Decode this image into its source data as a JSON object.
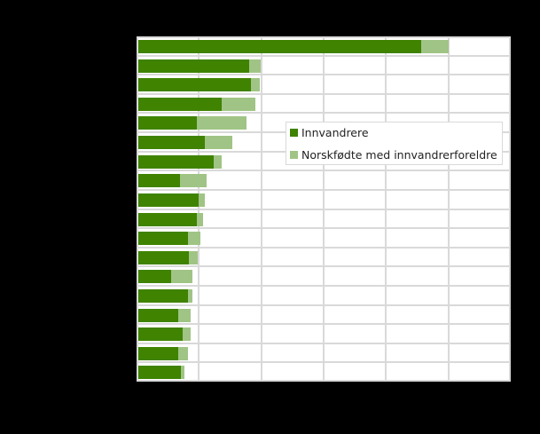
{
  "chart_data": {
    "type": "bar",
    "orientation": "horizontal",
    "stacked": true,
    "title": "",
    "xlabel": "",
    "ylabel": "",
    "categories": [
      "",
      "",
      "",
      "",
      "",
      "",
      "",
      "",
      "",
      "",
      "",
      "",
      "",
      "",
      "",
      "",
      "",
      ""
    ],
    "series": [
      {
        "name": "Innvandrere",
        "color": "#3f8300",
        "values": [
          4.56,
          1.8,
          1.84,
          1.37,
          0.96,
          1.1,
          1.23,
          0.69,
          1.0,
          0.96,
          0.83,
          0.84,
          0.56,
          0.83,
          0.67,
          0.74,
          0.67,
          0.71
        ]
      },
      {
        "name": "Norskfødte med innvandrerforeldre",
        "color": "#a0c485",
        "values": [
          0.44,
          0.19,
          0.13,
          0.53,
          0.81,
          0.44,
          0.14,
          0.43,
          0.1,
          0.11,
          0.2,
          0.14,
          0.34,
          0.06,
          0.2,
          0.13,
          0.16,
          0.06
        ]
      }
    ],
    "value_units_note": "values expressed in gridline intervals (axis tick labels not visible)",
    "xlim": [
      0,
      6
    ],
    "x_ticks": [
      "",
      "",
      "",
      "",
      "",
      "",
      ""
    ],
    "grid": true,
    "legend": {
      "position": "inside-right",
      "entries": [
        "Innvandrere",
        "Norskfødte med innvandrerforeldre"
      ]
    }
  },
  "legend": {
    "items": [
      {
        "label": "Innvandrere",
        "color": "#3f8300"
      },
      {
        "label": "Norskfødte med innvandrerforeldre",
        "color": "#a0c485"
      }
    ]
  },
  "colors": {
    "background": "#000000",
    "plot_background": "#ffffff",
    "grid": "#d9d9d9"
  }
}
